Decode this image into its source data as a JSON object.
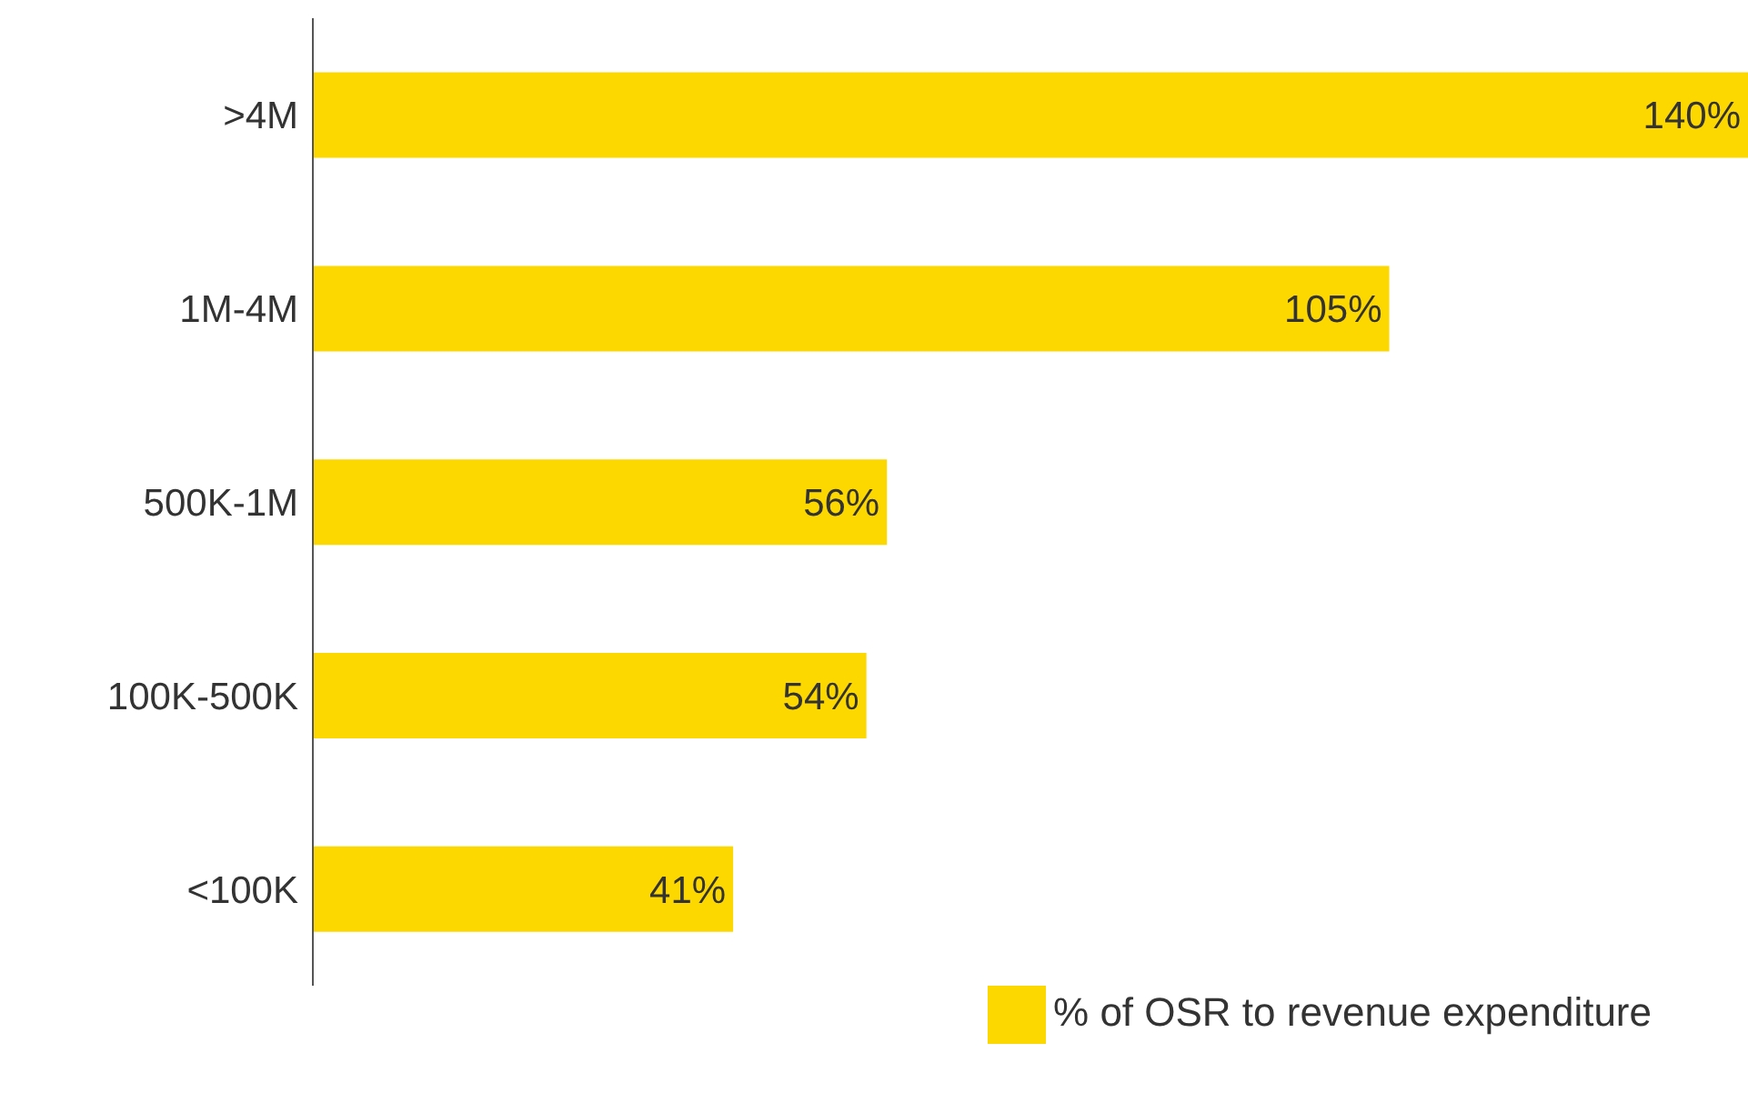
{
  "chart_data": {
    "type": "bar",
    "orientation": "horizontal",
    "categories": [
      ">4M",
      "1M-4M",
      "500K-1M",
      "100K-500K",
      "<100K"
    ],
    "series": [
      {
        "name": "% of OSR to revenue expenditure",
        "color": "#fdd800",
        "values": [
          140,
          105,
          56,
          54,
          41
        ],
        "value_labels": [
          "140%",
          "105%",
          "56%",
          "54%",
          "41%"
        ]
      }
    ],
    "legend": "bottom"
  }
}
